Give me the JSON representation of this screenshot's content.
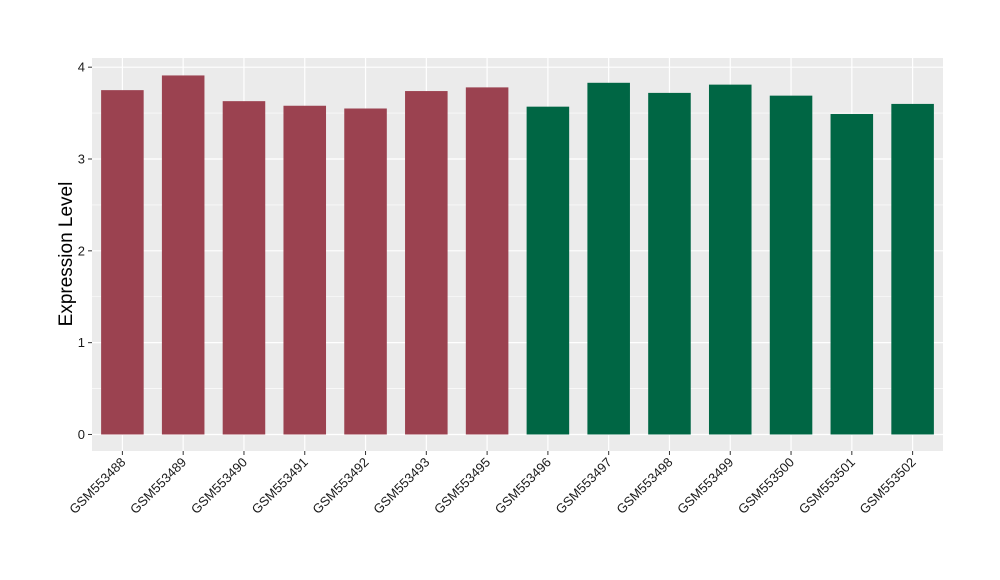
{
  "chart_data": {
    "type": "bar",
    "ylabel": "Expression Level",
    "xlabel": "",
    "ylim": [
      -0.18,
      4.1
    ],
    "yticks": [
      0,
      1,
      2,
      3,
      4
    ],
    "categories": [
      "GSM553488",
      "GSM553489",
      "GSM553490",
      "GSM553491",
      "GSM553492",
      "GSM553493",
      "GSM553495",
      "GSM553496",
      "GSM553497",
      "GSM553498",
      "GSM553499",
      "GSM553500",
      "GSM553501",
      "GSM553502"
    ],
    "values": [
      3.75,
      3.91,
      3.63,
      3.58,
      3.55,
      3.74,
      3.78,
      3.57,
      3.83,
      3.72,
      3.81,
      3.69,
      3.49,
      3.6
    ],
    "bar_colors": [
      "#9b4250",
      "#9b4250",
      "#9b4250",
      "#9b4250",
      "#9b4250",
      "#9b4250",
      "#9b4250",
      "#006644",
      "#006644",
      "#006644",
      "#006644",
      "#006644",
      "#006644",
      "#006644"
    ],
    "panel_background": "#ebebeb",
    "gridline_color": "#ffffff",
    "grid": true
  }
}
